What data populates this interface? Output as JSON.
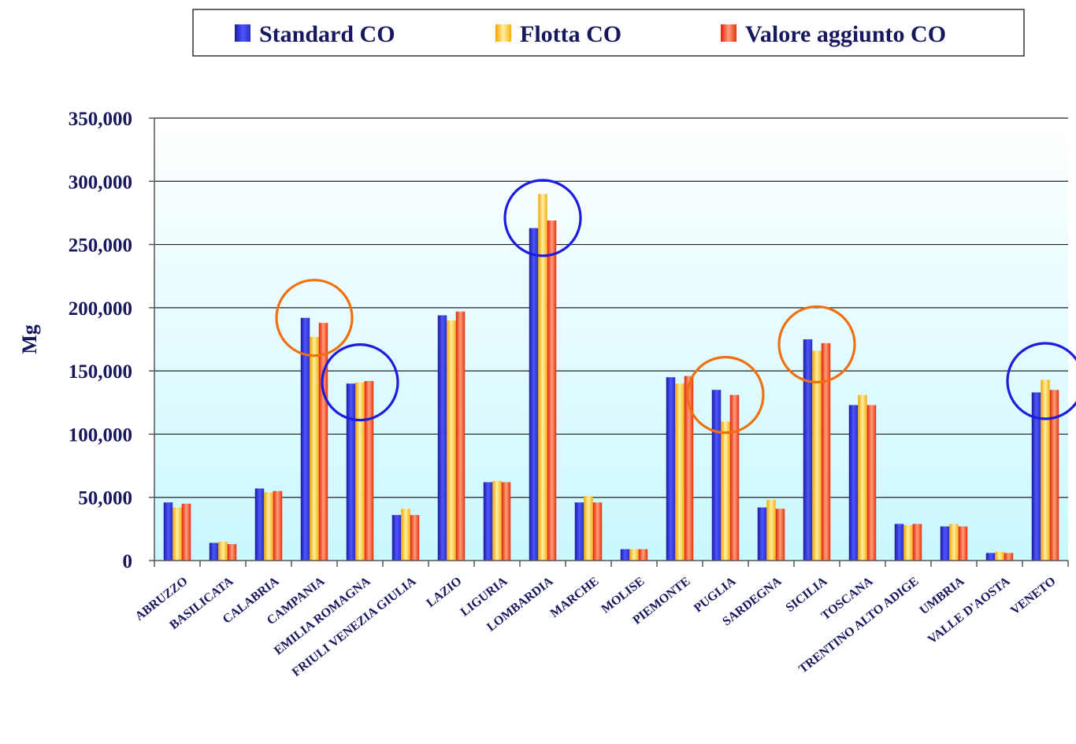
{
  "chart_data": {
    "type": "bar",
    "ylabel": "Mg",
    "xlabel": "",
    "ylim": [
      0,
      350000
    ],
    "y_ticks": [
      0,
      50000,
      100000,
      150000,
      200000,
      250000,
      300000,
      350000
    ],
    "y_tick_labels": [
      "0",
      "50,000",
      "100,000",
      "150,000",
      "200,000",
      "250,000",
      "300,000",
      "350,000"
    ],
    "grid": true,
    "legend_position": "top",
    "categories": [
      "ABRUZZO",
      "BASILICATA",
      "CALABRIA",
      "CAMPANIA",
      "EMILIA ROMAGNA",
      "FRIULI VENEZIA GIULIA",
      "LAZIO",
      "LIGURIA",
      "LOMBARDIA",
      "MARCHE",
      "MOLISE",
      "PIEMONTE",
      "PUGLIA",
      "SARDEGNA",
      "SICILIA",
      "TOSCANA",
      "TRENTINO ALTO ADIGE",
      "UMBRIA",
      "VALLE D'AOSTA",
      "VENETO"
    ],
    "series": [
      {
        "name": "Standard CO",
        "color": "#3a3fd4",
        "values": [
          46000,
          14000,
          57000,
          192000,
          140000,
          36000,
          194000,
          62000,
          263000,
          46000,
          9000,
          145000,
          135000,
          42000,
          175000,
          123000,
          29000,
          27000,
          6000,
          133000
        ]
      },
      {
        "name": "Flotta CO",
        "color": "#ffc240",
        "values": [
          42000,
          15000,
          54000,
          177000,
          141000,
          41000,
          190000,
          63000,
          290000,
          51000,
          9000,
          140000,
          110000,
          48000,
          166000,
          131000,
          28000,
          29000,
          7000,
          143000
        ]
      },
      {
        "name": "Valore aggiunto CO",
        "color": "#ee3a1a",
        "values": [
          45000,
          13000,
          55000,
          188000,
          142000,
          36000,
          197000,
          62000,
          269000,
          46000,
          9000,
          146000,
          131000,
          41000,
          172000,
          123000,
          29000,
          27000,
          6000,
          135000
        ]
      }
    ],
    "annotations": [
      {
        "shape": "circle",
        "color": "#f07010",
        "category": "CAMPANIA",
        "center_value": 192000
      },
      {
        "shape": "circle",
        "color": "#1c1ce0",
        "category": "EMILIA ROMAGNA",
        "center_value": 141000
      },
      {
        "shape": "circle",
        "color": "#1c1ce0",
        "category": "LOMBARDIA",
        "center_value": 271000
      },
      {
        "shape": "circle",
        "color": "#f07010",
        "category": "PUGLIA",
        "center_value": 131000
      },
      {
        "shape": "circle",
        "color": "#f07010",
        "category": "SICILIA",
        "center_value": 171000
      },
      {
        "shape": "circle",
        "color": "#1c1ce0",
        "category": "VENETO",
        "center_value": 142000
      }
    ],
    "plot_background": "#d6fbff"
  }
}
